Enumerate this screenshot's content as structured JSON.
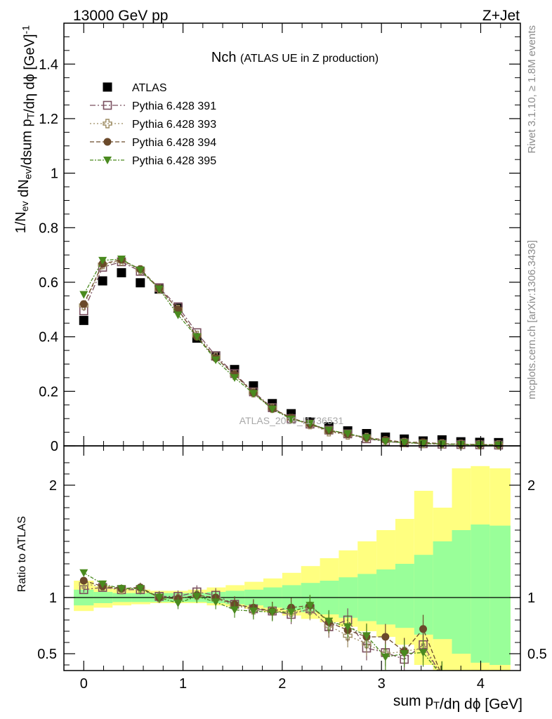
{
  "header": {
    "left": "13000 GeV pp",
    "right": "Z+Jet"
  },
  "side": {
    "rivet": "Rivet 3.1.10, ≥ 1.8M events",
    "mcplots": "mcplots.cern.ch [arXiv:1306.3436]"
  },
  "watermark": "ATLAS_2019_I1736531",
  "chart_data": [
    {
      "type": "scatter",
      "title": "Nch (ATLAS UE in Z production)",
      "xlabel": "sum p_T/dη dϕ [GeV]",
      "ylabel": "1/N_ev dN_ev/dsum p_T/dη dϕ [GeV]^-1",
      "xlim": [
        -0.2,
        4.4
      ],
      "ylim": [
        0,
        1.55
      ],
      "x_ticks": [
        "0",
        "1",
        "2",
        "3",
        "4"
      ],
      "y_ticks": [
        "0",
        "0.2",
        "0.4",
        "0.6",
        "0.8",
        "1",
        "1.2",
        "1.4"
      ],
      "legend_position": "top-left",
      "x": [
        0,
        0.19,
        0.38,
        0.57,
        0.76,
        0.95,
        1.14,
        1.33,
        1.52,
        1.71,
        1.9,
        2.09,
        2.28,
        2.47,
        2.66,
        2.85,
        3.04,
        3.23,
        3.42,
        3.61,
        3.8,
        3.99,
        4.18
      ],
      "series": [
        {
          "name": "ATLAS",
          "color": "#000000",
          "marker": "filled-square",
          "values": [
            0.46,
            0.605,
            0.635,
            0.598,
            0.575,
            0.505,
            0.395,
            0.33,
            0.28,
            0.22,
            0.155,
            0.118,
            0.088,
            0.07,
            0.055,
            0.045,
            0.032,
            0.025,
            0.018,
            0.022,
            0.015,
            0.013,
            0.012
          ]
        },
        {
          "name": "Pythia 6.428 391",
          "color": "#7a4f5f",
          "marker": "open-square",
          "dash": "8,3,2,3",
          "values": [
            0.495,
            0.655,
            0.675,
            0.64,
            0.58,
            0.51,
            0.415,
            0.33,
            0.265,
            0.198,
            0.14,
            0.1,
            0.08,
            0.058,
            0.044,
            0.026,
            0.016,
            0.011,
            0.008,
            0.006,
            0.005,
            0.004,
            0.003
          ]
        },
        {
          "name": "Pythia 6.428 393",
          "color": "#9c8b62",
          "marker": "open-cross",
          "dash": "2,3",
          "values": [
            0.515,
            0.665,
            0.678,
            0.645,
            0.575,
            0.5,
            0.405,
            0.325,
            0.26,
            0.195,
            0.138,
            0.1,
            0.078,
            0.052,
            0.04,
            0.03,
            0.018,
            0.012,
            0.009,
            0.007,
            0.005,
            0.004,
            0.003
          ]
        },
        {
          "name": "Pythia 6.428 394",
          "color": "#6b4a2b",
          "marker": "filled-circle",
          "dash": "6,3",
          "values": [
            0.52,
            0.668,
            0.682,
            0.648,
            0.578,
            0.5,
            0.4,
            0.322,
            0.262,
            0.195,
            0.137,
            0.103,
            0.08,
            0.055,
            0.043,
            0.03,
            0.022,
            0.013,
            0.013,
            0.008,
            0.006,
            0.005,
            0.004
          ]
        },
        {
          "name": "Pythia 6.428 395",
          "color": "#4a8a1f",
          "marker": "filled-triangle-down",
          "dash": "5,2,2,2",
          "values": [
            0.555,
            0.68,
            0.685,
            0.645,
            0.575,
            0.48,
            0.4,
            0.315,
            0.25,
            0.192,
            0.135,
            0.098,
            0.082,
            0.058,
            0.045,
            0.03,
            0.016,
            0.012,
            0.009,
            0.007,
            0.005,
            0.004,
            0.003
          ]
        }
      ]
    },
    {
      "type": "scatter",
      "ylabel": "Ratio to ATLAS",
      "xlim": [
        -0.2,
        4.4
      ],
      "ylim": [
        0.35,
        2.35
      ],
      "y_ticks": [
        "0.5",
        "1",
        "2"
      ],
      "reference_line": 1,
      "band_edges": [
        -0.1,
        0.1,
        0.29,
        0.48,
        0.67,
        0.86,
        1.05,
        1.24,
        1.43,
        1.62,
        1.81,
        2.0,
        2.19,
        2.38,
        2.57,
        2.76,
        2.95,
        3.14,
        3.33,
        3.52,
        3.71,
        3.9,
        4.09,
        4.3
      ],
      "bands": [
        {
          "name": "stat",
          "color": "#99ff99",
          "lo": [
            0.93,
            0.95,
            0.96,
            0.96,
            0.96,
            0.96,
            0.96,
            0.95,
            0.94,
            0.93,
            0.91,
            0.89,
            0.87,
            0.85,
            0.82,
            0.79,
            0.76,
            0.73,
            0.67,
            0.63,
            0.5,
            0.42,
            0.4
          ],
          "hi": [
            1.07,
            1.05,
            1.04,
            1.04,
            1.04,
            1.04,
            1.04,
            1.05,
            1.06,
            1.07,
            1.09,
            1.11,
            1.13,
            1.15,
            1.18,
            1.21,
            1.25,
            1.3,
            1.38,
            1.5,
            1.6,
            1.65,
            1.64
          ]
        },
        {
          "name": "syst",
          "color": "#ffff80",
          "lo": [
            0.88,
            0.91,
            0.93,
            0.94,
            0.95,
            0.95,
            0.95,
            0.93,
            0.92,
            0.9,
            0.87,
            0.84,
            0.81,
            0.78,
            0.74,
            0.7,
            0.65,
            0.58,
            0.4,
            0.35,
            0.35,
            0.35,
            0.35
          ],
          "hi": [
            1.15,
            1.1,
            1.08,
            1.07,
            1.06,
            1.06,
            1.07,
            1.09,
            1.11,
            1.14,
            1.17,
            1.22,
            1.28,
            1.35,
            1.42,
            1.5,
            1.6,
            1.7,
            1.95,
            1.8,
            2.15,
            2.17,
            2.15
          ]
        }
      ],
      "series": [
        {
          "name": "Pythia 6.428 391",
          "values": [
            1.07,
            1.09,
            1.07,
            1.07,
            1.01,
            1.01,
            1.05,
            1.02,
            0.94,
            0.9,
            0.88,
            0.85,
            0.9,
            0.74,
            0.8,
            0.55,
            0.51,
            0.45,
            0.58,
            0.3
          ]
        },
        {
          "name": "Pythia 6.428 393",
          "values": [
            1.12,
            1.1,
            1.07,
            1.08,
            1.0,
            0.99,
            1.02,
            0.99,
            0.93,
            0.89,
            0.88,
            0.87,
            0.89,
            0.75,
            0.66,
            0.59,
            0.5,
            0.52,
            0.55,
            0.3
          ]
        },
        {
          "name": "Pythia 6.428 394",
          "values": [
            1.15,
            1.1,
            1.08,
            1.09,
            1.0,
            0.99,
            1.02,
            1.0,
            0.94,
            0.91,
            0.88,
            0.91,
            0.93,
            0.78,
            0.71,
            0.65,
            0.65,
            0.52,
            0.72,
            0.3
          ]
        },
        {
          "name": "Pythia 6.428 395",
          "values": [
            1.22,
            1.12,
            1.08,
            1.08,
            1.0,
            0.95,
            1.01,
            0.96,
            0.89,
            0.88,
            0.87,
            0.87,
            0.93,
            0.79,
            0.74,
            0.66,
            0.47,
            0.5,
            0.51,
            0.3
          ]
        }
      ]
    }
  ]
}
